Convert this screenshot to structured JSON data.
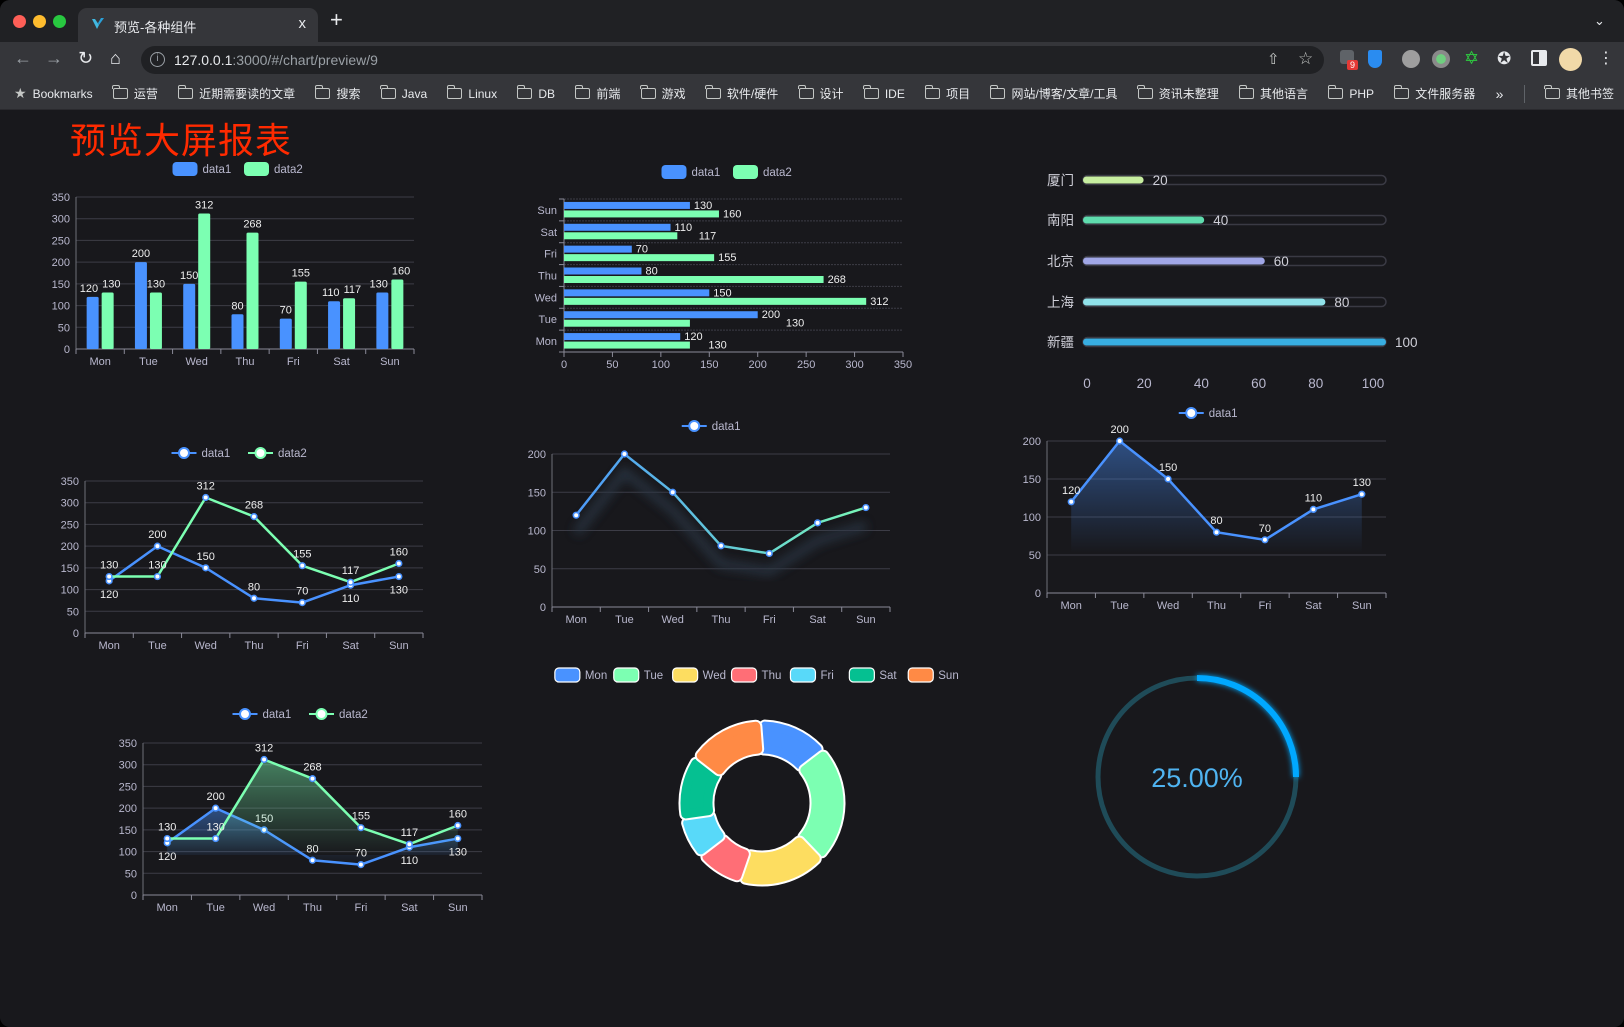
{
  "browser": {
    "tab_title": "预览-各种组件",
    "new_tab": "+",
    "close_tab": "x",
    "url_host": "127.0.0.1",
    "url_path": ":3000/#/chart/preview/9",
    "bookmarks_label": "Bookmarks",
    "bookmarks": [
      "运营",
      "近期需要读的文章",
      "搜索",
      "Java",
      "Linux",
      "DB",
      "前端",
      "游戏",
      "软件/硬件",
      "设计",
      "IDE",
      "项目",
      "网站/博客/文章/工具",
      "资讯未整理",
      "其他语言",
      "PHP",
      "文件服务器"
    ],
    "overflow": "»",
    "other_bookmarks": "其他书签",
    "extension_badge": "9"
  },
  "page": {
    "title": "预览大屏报表",
    "title_color": "#ff2a00",
    "background": "#18181c"
  },
  "chart_data": [
    {
      "type": "bar",
      "categories": [
        "Mon",
        "Tue",
        "Wed",
        "Thu",
        "Fri",
        "Sat",
        "Sun"
      ],
      "series": [
        {
          "name": "data1",
          "values": [
            120,
            200,
            150,
            80,
            70,
            110,
            130
          ],
          "color": "#4992ff"
        },
        {
          "name": "data2",
          "values": [
            130,
            130,
            312,
            268,
            155,
            117,
            160
          ],
          "color": "#7cffb2"
        }
      ],
      "yticks": [
        0,
        50,
        100,
        150,
        200,
        250,
        300,
        350
      ],
      "ylim": [
        0,
        350
      ],
      "grid": true,
      "legend": "top",
      "data_labels": true
    },
    {
      "type": "bar",
      "orientation": "horizontal",
      "categories": [
        "Mon",
        "Tue",
        "Wed",
        "Thu",
        "Fri",
        "Sat",
        "Sun"
      ],
      "series": [
        {
          "name": "data1",
          "values": [
            120,
            200,
            150,
            80,
            70,
            110,
            130
          ],
          "color": "#4992ff"
        },
        {
          "name": "data2",
          "values": [
            130,
            130,
            312,
            268,
            155,
            117,
            160
          ],
          "color": "#7cffb2"
        }
      ],
      "xticks": [
        0,
        50,
        100,
        150,
        200,
        250,
        300,
        350
      ],
      "xlim": [
        0,
        350
      ],
      "grid": true,
      "legend": "top",
      "data_labels": true
    },
    {
      "type": "bar",
      "orientation": "horizontal",
      "style": "progress",
      "categories": [
        "厦门",
        "南阳",
        "北京",
        "上海",
        "新疆"
      ],
      "values": [
        20,
        40,
        60,
        80,
        100
      ],
      "colors": [
        "#c7eea0",
        "#5fdcae",
        "#a0a6e6",
        "#90e2ea",
        "#38aee2"
      ],
      "xticks": [
        0,
        20,
        40,
        60,
        80,
        100
      ],
      "xlim": [
        0,
        100
      ],
      "data_labels": true
    },
    {
      "type": "line",
      "categories": [
        "Mon",
        "Tue",
        "Wed",
        "Thu",
        "Fri",
        "Sat",
        "Sun"
      ],
      "series": [
        {
          "name": "data1",
          "values": [
            120,
            200,
            150,
            80,
            70,
            110,
            130
          ],
          "color": "#4992ff"
        },
        {
          "name": "data2",
          "values": [
            130,
            130,
            312,
            268,
            155,
            117,
            160
          ],
          "color": "#7cffb2"
        }
      ],
      "yticks": [
        0,
        50,
        100,
        150,
        200,
        250,
        300,
        350
      ],
      "ylim": [
        0,
        350
      ],
      "grid": true,
      "legend": "top",
      "data_labels": true
    },
    {
      "type": "line",
      "categories": [
        "Mon",
        "Tue",
        "Wed",
        "Thu",
        "Fri",
        "Sat",
        "Sun"
      ],
      "series": [
        {
          "name": "data1",
          "values": [
            120,
            200,
            150,
            80,
            70,
            110,
            130
          ],
          "color": "#4992ff",
          "gradient": [
            "#4992ff",
            "#7cffb2"
          ],
          "shadow": true
        }
      ],
      "yticks": [
        0,
        50,
        100,
        150,
        200
      ],
      "ylim": [
        0,
        200
      ],
      "grid": true,
      "legend": "top",
      "data_labels": false
    },
    {
      "type": "area",
      "categories": [
        "Mon",
        "Tue",
        "Wed",
        "Thu",
        "Fri",
        "Sat",
        "Sun"
      ],
      "series": [
        {
          "name": "data1",
          "values": [
            120,
            200,
            150,
            80,
            70,
            110,
            130
          ],
          "color": "#4992ff"
        }
      ],
      "yticks": [
        0,
        50,
        100,
        150,
        200
      ],
      "ylim": [
        0,
        200
      ],
      "grid": true,
      "legend": "top",
      "data_labels": true
    },
    {
      "type": "area",
      "categories": [
        "Mon",
        "Tue",
        "Wed",
        "Thu",
        "Fri",
        "Sat",
        "Sun"
      ],
      "series": [
        {
          "name": "data1",
          "values": [
            120,
            200,
            150,
            80,
            70,
            110,
            130
          ],
          "color": "#4992ff"
        },
        {
          "name": "data2",
          "values": [
            130,
            130,
            312,
            268,
            155,
            117,
            160
          ],
          "color": "#7cffb2"
        }
      ],
      "yticks": [
        0,
        50,
        100,
        150,
        200,
        250,
        300,
        350
      ],
      "ylim": [
        0,
        350
      ],
      "grid": true,
      "legend": "top",
      "data_labels": true
    },
    {
      "type": "pie",
      "style": "donut",
      "categories": [
        "Mon",
        "Tue",
        "Wed",
        "Thu",
        "Fri",
        "Sat",
        "Sun"
      ],
      "values": [
        120,
        200,
        150,
        80,
        70,
        110,
        130
      ],
      "colors": [
        "#4992ff",
        "#7cffb2",
        "#fddd60",
        "#ff6e76",
        "#58d9f9",
        "#05c091",
        "#ff8a45"
      ],
      "legend": "top"
    },
    {
      "type": "gauge",
      "value": 25,
      "max": 100,
      "label": "25.00%",
      "color": "#00a8ff",
      "track_color": "#1f4b58",
      "label_color": "#4fb3f0"
    }
  ]
}
